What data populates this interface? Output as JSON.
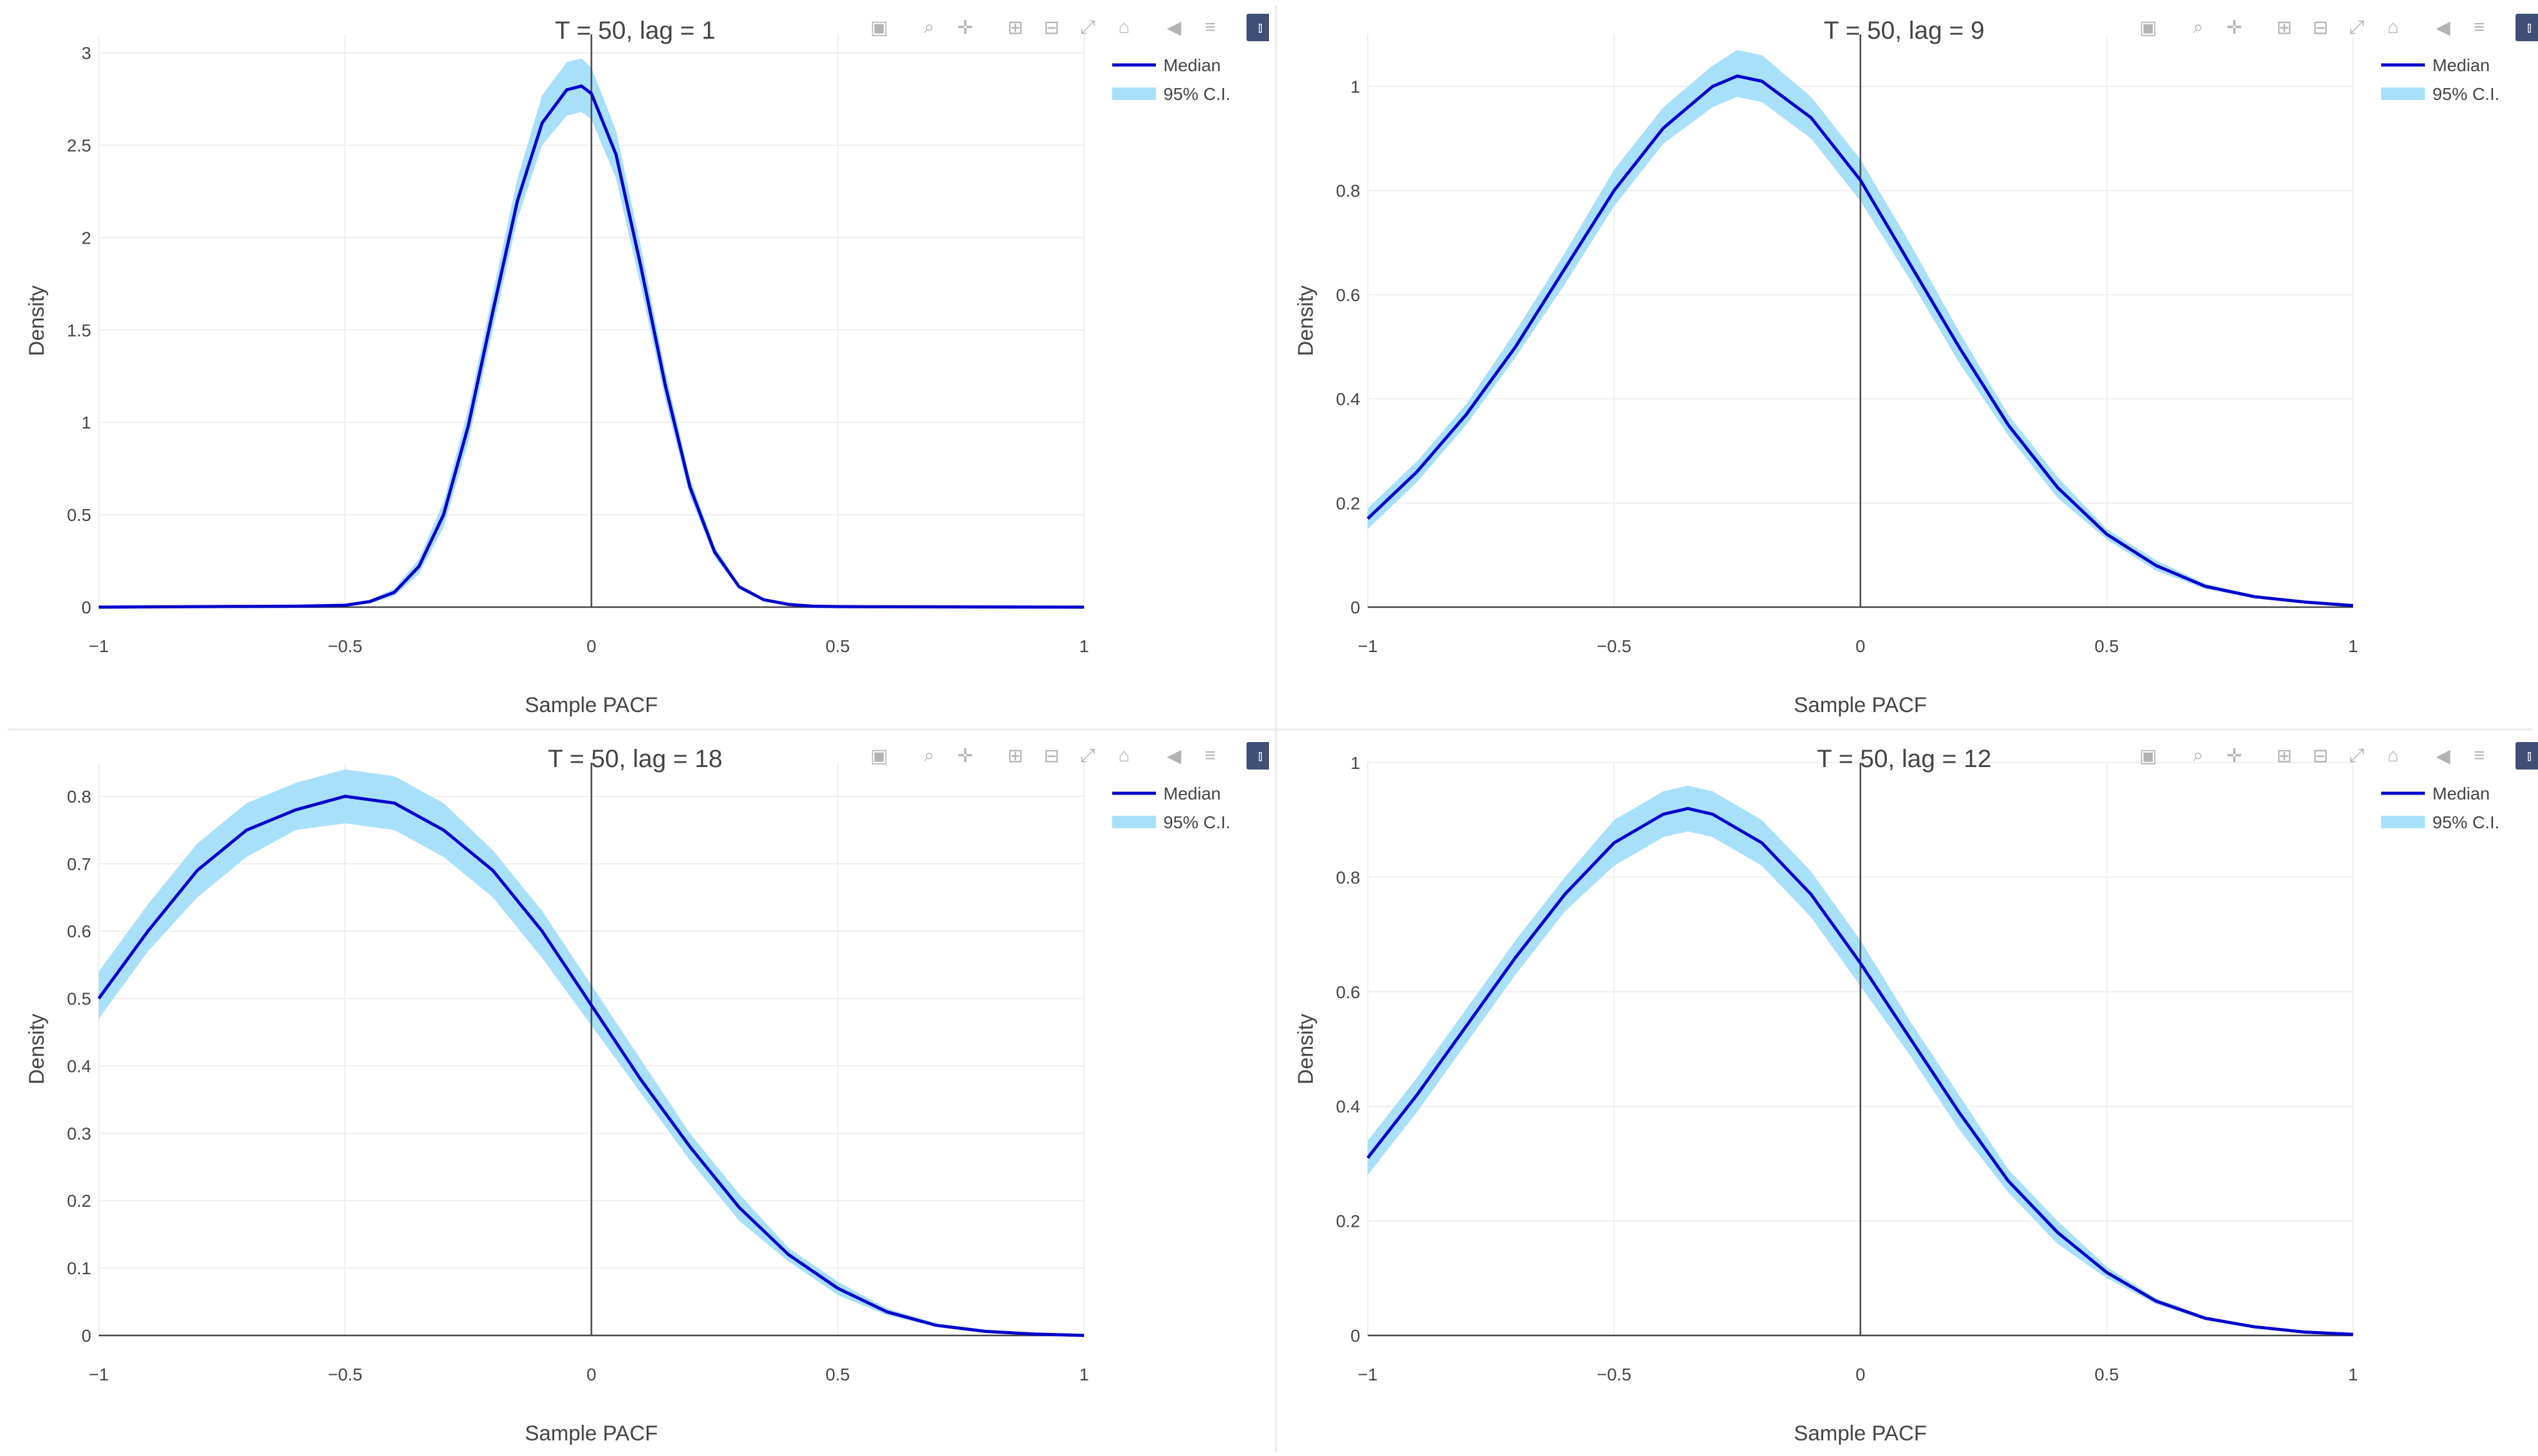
{
  "modebar": {
    "buttons": [
      {
        "name": "camera-icon",
        "glyph": "▣"
      },
      {
        "name": "zoom-icon",
        "glyph": "⌕"
      },
      {
        "name": "pan-icon",
        "glyph": "✛"
      },
      {
        "name": "zoom-in-icon",
        "glyph": "⊞"
      },
      {
        "name": "zoom-out-icon",
        "glyph": "⊟"
      },
      {
        "name": "autoscale-icon",
        "glyph": "⤢"
      },
      {
        "name": "home-icon",
        "glyph": "⌂"
      },
      {
        "name": "hover-closest-icon",
        "glyph": "◀"
      },
      {
        "name": "hover-compare-icon",
        "glyph": "≡"
      },
      {
        "name": "plotly-logo-icon",
        "glyph": "⫾"
      }
    ]
  },
  "colors": {
    "median": "#0000cc",
    "ci": "#a8e0fa",
    "grid": "#eeeeee",
    "zeroline": "#444444"
  },
  "chart_data": [
    {
      "type": "line",
      "title": "T = 50, lag = 1",
      "xlabel": "Sample PACF",
      "ylabel": "Density",
      "xlim": [
        -1,
        1
      ],
      "ylim": [
        0,
        3.1
      ],
      "xticks": [
        -1,
        -0.5,
        0,
        0.5,
        1
      ],
      "xtick_labels": [
        "−1",
        "−0.5",
        "0",
        "0.5",
        "1"
      ],
      "yticks": [
        0,
        0.5,
        1,
        1.5,
        2,
        2.5,
        3
      ],
      "ytick_labels": [
        "0",
        "0.5",
        "1",
        "1.5",
        "2",
        "2.5",
        "3"
      ],
      "grid": true,
      "legend": "top-right",
      "x": [
        -1,
        -0.6,
        -0.5,
        -0.45,
        -0.4,
        -0.35,
        -0.3,
        -0.25,
        -0.2,
        -0.15,
        -0.1,
        -0.05,
        -0.02,
        0,
        0.05,
        0.1,
        0.15,
        0.2,
        0.25,
        0.3,
        0.35,
        0.4,
        0.45,
        0.5,
        0.6,
        1
      ],
      "series": [
        {
          "name": "Median",
          "values": [
            0,
            0.005,
            0.01,
            0.03,
            0.08,
            0.22,
            0.5,
            0.98,
            1.6,
            2.2,
            2.62,
            2.8,
            2.82,
            2.78,
            2.45,
            1.85,
            1.2,
            0.65,
            0.3,
            0.11,
            0.04,
            0.015,
            0.005,
            0.003,
            0.002,
            0
          ]
        },
        {
          "name": "95% C.I.",
          "lower": [
            0,
            0.004,
            0.008,
            0.02,
            0.06,
            0.18,
            0.43,
            0.89,
            1.5,
            2.1,
            2.5,
            2.66,
            2.68,
            2.64,
            2.32,
            1.74,
            1.12,
            0.6,
            0.27,
            0.1,
            0.035,
            0.012,
            0.004,
            0.002,
            0.001,
            0
          ],
          "upper": [
            0,
            0.007,
            0.013,
            0.04,
            0.1,
            0.26,
            0.57,
            1.07,
            1.7,
            2.32,
            2.77,
            2.95,
            2.97,
            2.92,
            2.58,
            1.96,
            1.28,
            0.7,
            0.33,
            0.12,
            0.045,
            0.018,
            0.007,
            0.004,
            0.003,
            0
          ]
        }
      ]
    },
    {
      "type": "line",
      "title": "T = 50, lag = 9",
      "xlabel": "Sample PACF",
      "ylabel": "Density",
      "xlim": [
        -1,
        1
      ],
      "ylim": [
        0,
        1.1
      ],
      "xticks": [
        -1,
        -0.5,
        0,
        0.5,
        1
      ],
      "xtick_labels": [
        "−1",
        "−0.5",
        "0",
        "0.5",
        "1"
      ],
      "yticks": [
        0,
        0.2,
        0.4,
        0.6,
        0.8,
        1
      ],
      "ytick_labels": [
        "0",
        "0.2",
        "0.4",
        "0.6",
        "0.8",
        "1"
      ],
      "grid": true,
      "legend": "top-right",
      "x": [
        -1,
        -0.9,
        -0.8,
        -0.7,
        -0.6,
        -0.5,
        -0.4,
        -0.3,
        -0.25,
        -0.2,
        -0.1,
        0,
        0.1,
        0.2,
        0.3,
        0.4,
        0.5,
        0.6,
        0.7,
        0.8,
        0.9,
        1
      ],
      "series": [
        {
          "name": "Median",
          "values": [
            0.17,
            0.26,
            0.37,
            0.5,
            0.65,
            0.8,
            0.92,
            1.0,
            1.02,
            1.01,
            0.94,
            0.82,
            0.66,
            0.5,
            0.35,
            0.23,
            0.14,
            0.08,
            0.04,
            0.02,
            0.01,
            0.003
          ]
        },
        {
          "name": "95% C.I.",
          "lower": [
            0.15,
            0.24,
            0.35,
            0.48,
            0.62,
            0.77,
            0.89,
            0.96,
            0.98,
            0.97,
            0.9,
            0.78,
            0.63,
            0.47,
            0.33,
            0.21,
            0.13,
            0.07,
            0.035,
            0.017,
            0.008,
            0.002
          ],
          "upper": [
            0.19,
            0.28,
            0.39,
            0.53,
            0.68,
            0.84,
            0.96,
            1.04,
            1.07,
            1.06,
            0.98,
            0.86,
            0.7,
            0.53,
            0.37,
            0.25,
            0.15,
            0.09,
            0.045,
            0.023,
            0.012,
            0.004
          ]
        }
      ]
    },
    {
      "type": "line",
      "title": "T = 50, lag = 18",
      "xlabel": "Sample PACF",
      "ylabel": "Density",
      "xlim": [
        -1,
        1
      ],
      "ylim": [
        0,
        0.85
      ],
      "xticks": [
        -1,
        -0.5,
        0,
        0.5,
        1
      ],
      "xtick_labels": [
        "−1",
        "−0.5",
        "0",
        "0.5",
        "1"
      ],
      "yticks": [
        0,
        0.1,
        0.2,
        0.3,
        0.4,
        0.5,
        0.6,
        0.7,
        0.8
      ],
      "ytick_labels": [
        "0",
        "0.1",
        "0.2",
        "0.3",
        "0.4",
        "0.5",
        "0.6",
        "0.7",
        "0.8"
      ],
      "grid": true,
      "legend": "top-right",
      "x": [
        -1,
        -0.9,
        -0.8,
        -0.7,
        -0.6,
        -0.5,
        -0.4,
        -0.3,
        -0.2,
        -0.1,
        0,
        0.1,
        0.2,
        0.3,
        0.4,
        0.5,
        0.6,
        0.7,
        0.8,
        0.9,
        1
      ],
      "series": [
        {
          "name": "Median",
          "values": [
            0.5,
            0.6,
            0.69,
            0.75,
            0.78,
            0.8,
            0.79,
            0.75,
            0.69,
            0.6,
            0.49,
            0.38,
            0.28,
            0.19,
            0.12,
            0.07,
            0.035,
            0.015,
            0.006,
            0.002,
            0
          ]
        },
        {
          "name": "95% C.I.",
          "lower": [
            0.47,
            0.57,
            0.65,
            0.71,
            0.75,
            0.76,
            0.75,
            0.71,
            0.65,
            0.56,
            0.46,
            0.36,
            0.26,
            0.17,
            0.11,
            0.06,
            0.03,
            0.013,
            0.005,
            0.001,
            0
          ],
          "upper": [
            0.54,
            0.64,
            0.73,
            0.79,
            0.82,
            0.84,
            0.83,
            0.79,
            0.72,
            0.63,
            0.52,
            0.41,
            0.3,
            0.21,
            0.13,
            0.08,
            0.04,
            0.018,
            0.007,
            0.002,
            0
          ]
        }
      ]
    },
    {
      "type": "line",
      "title": "T = 50, lag = 12",
      "xlabel": "Sample PACF",
      "ylabel": "Density",
      "xlim": [
        -1,
        1
      ],
      "ylim": [
        0,
        1
      ],
      "xticks": [
        -1,
        -0.5,
        0,
        0.5,
        1
      ],
      "xtick_labels": [
        "−1",
        "−0.5",
        "0",
        "0.5",
        "1"
      ],
      "yticks": [
        0,
        0.2,
        0.4,
        0.6,
        0.8,
        1
      ],
      "ytick_labels": [
        "0",
        "0.2",
        "0.4",
        "0.6",
        "0.8",
        "1"
      ],
      "grid": true,
      "legend": "top-right",
      "x": [
        -1,
        -0.9,
        -0.8,
        -0.7,
        -0.6,
        -0.5,
        -0.4,
        -0.35,
        -0.3,
        -0.2,
        -0.1,
        0,
        0.1,
        0.2,
        0.3,
        0.4,
        0.5,
        0.6,
        0.7,
        0.8,
        0.9,
        1
      ],
      "series": [
        {
          "name": "Median",
          "values": [
            0.31,
            0.42,
            0.54,
            0.66,
            0.77,
            0.86,
            0.91,
            0.92,
            0.91,
            0.86,
            0.77,
            0.65,
            0.52,
            0.39,
            0.27,
            0.18,
            0.11,
            0.06,
            0.03,
            0.015,
            0.006,
            0.002
          ]
        },
        {
          "name": "95% C.I.",
          "lower": [
            0.28,
            0.39,
            0.51,
            0.63,
            0.74,
            0.82,
            0.87,
            0.88,
            0.87,
            0.82,
            0.73,
            0.61,
            0.49,
            0.36,
            0.25,
            0.16,
            0.1,
            0.055,
            0.027,
            0.012,
            0.005,
            0.001
          ],
          "upper": [
            0.34,
            0.45,
            0.57,
            0.69,
            0.8,
            0.9,
            0.95,
            0.96,
            0.95,
            0.9,
            0.81,
            0.69,
            0.55,
            0.42,
            0.29,
            0.2,
            0.12,
            0.065,
            0.033,
            0.017,
            0.007,
            0.003
          ]
        }
      ]
    }
  ]
}
